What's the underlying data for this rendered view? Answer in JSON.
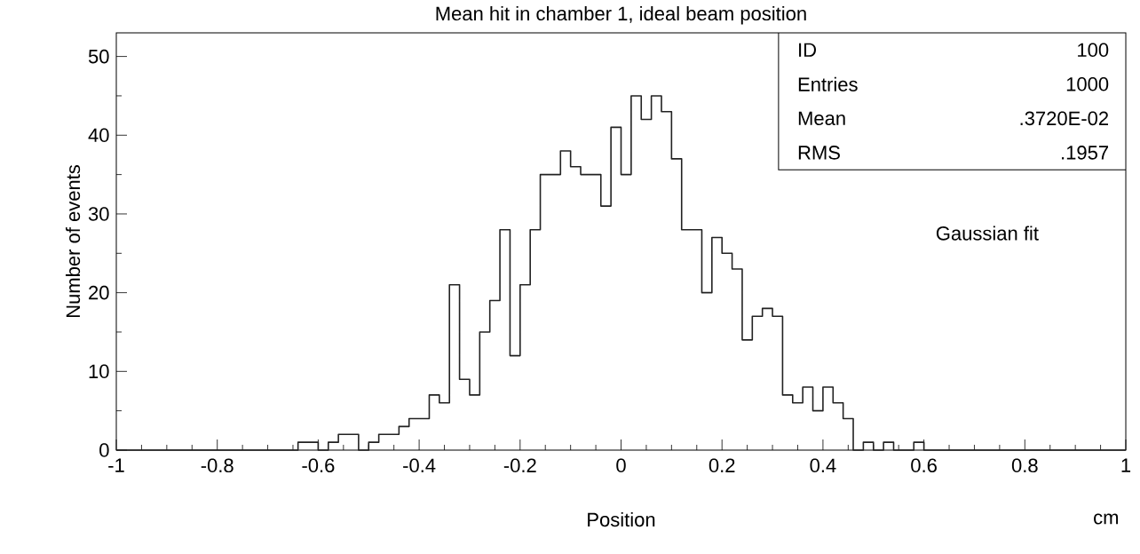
{
  "chart_data": {
    "type": "histogram",
    "title": "Mean hit in chamber 1, ideal beam position",
    "xlabel": "Position",
    "ylabel": "Number of events",
    "bins": [
      -1,
      -0.98,
      -0.96,
      -0.94,
      -0.92,
      -0.9,
      -0.88,
      -0.86,
      -0.84,
      -0.82,
      -0.8,
      -0.78,
      -0.76,
      -0.74,
      -0.72,
      -0.7,
      -0.68,
      -0.66,
      -0.64,
      -0.62,
      -0.6,
      -0.58,
      -0.56,
      -0.54,
      -0.52,
      -0.5,
      -0.48,
      -0.46,
      -0.44,
      -0.42,
      -0.4,
      -0.38,
      -0.36,
      -0.34,
      -0.32,
      -0.3,
      -0.28,
      -0.26,
      -0.24,
      -0.22,
      -0.2,
      -0.18,
      -0.16,
      -0.14,
      -0.12,
      -0.1,
      -0.08,
      -0.06,
      -0.04,
      -0.02,
      0,
      0.02,
      0.04,
      0.06,
      0.08,
      0.1,
      0.12,
      0.14,
      0.16,
      0.18,
      0.2,
      0.22,
      0.24,
      0.26,
      0.28,
      0.3,
      0.32,
      0.34,
      0.36,
      0.38,
      0.4,
      0.42,
      0.44,
      0.46,
      0.48,
      0.5,
      0.52,
      0.54,
      0.56,
      0.58,
      0.6,
      0.62,
      0.64,
      0.66,
      0.68,
      0.7,
      0.72,
      0.74,
      0.76,
      0.78,
      0.8,
      0.82,
      0.84,
      0.86,
      0.88,
      0.9,
      0.92,
      0.94,
      0.96,
      0.98,
      1
    ],
    "values": [
      0,
      0,
      0,
      0,
      0,
      0,
      0,
      0,
      0,
      0,
      0,
      0,
      0,
      0,
      0,
      0,
      0,
      0,
      1,
      1,
      0,
      1,
      2,
      2,
      0,
      1,
      2,
      2,
      3,
      4,
      4,
      7,
      6,
      21,
      9,
      7,
      15,
      19,
      28,
      12,
      21,
      28,
      35,
      35,
      38,
      36,
      35,
      35,
      31,
      41,
      35,
      45,
      42,
      45,
      43,
      37,
      28,
      28,
      20,
      27,
      25,
      23,
      14,
      17,
      18,
      17,
      7,
      6,
      8,
      5,
      8,
      6,
      4,
      0,
      1,
      0,
      1,
      0,
      0,
      1,
      0,
      0,
      0,
      0,
      0,
      0,
      0,
      0,
      0,
      0,
      0,
      0,
      0,
      0,
      0,
      0,
      0,
      0,
      0,
      0
    ],
    "color": "#222222",
    "xlim": [
      -1,
      1
    ],
    "xticks": [
      -1,
      -0.8,
      -0.6,
      -0.4,
      -0.2,
      0,
      0.2,
      0.4,
      0.6,
      0.8,
      1
    ],
    "ylim": [
      0,
      53
    ],
    "yticks": [
      0,
      10,
      20,
      30,
      40,
      50
    ],
    "annotations": [
      "ID",
      "100",
      "Entries",
      "1000",
      "Mean",
      ".3720E-02",
      "RMS",
      ".1957",
      "Gaussian fit",
      "cm"
    ]
  }
}
